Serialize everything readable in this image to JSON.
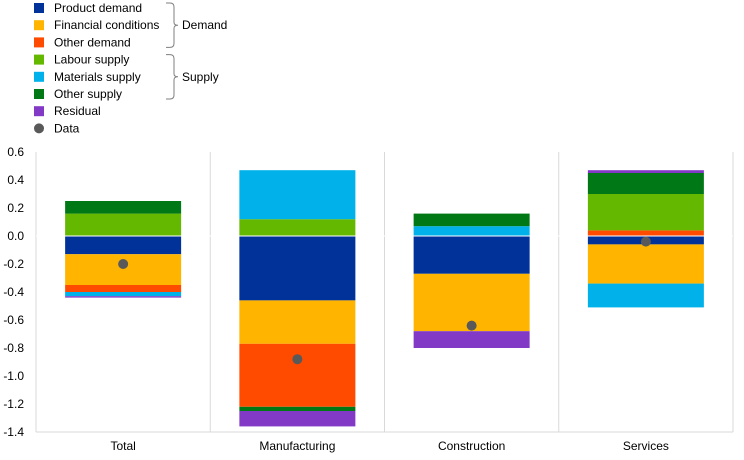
{
  "chart_data": {
    "type": "bar",
    "stacked": true,
    "categories": [
      "Total",
      "Manufacturing",
      "Construction",
      "Services"
    ],
    "ylim": [
      -1.4,
      0.6
    ],
    "yticks": [
      "0.6",
      "0.4",
      "0.2",
      "0.0",
      "-0.2",
      "-0.4",
      "-0.6",
      "-0.8",
      "-1.0",
      "-1.2",
      "-1.4"
    ],
    "ytick_values": [
      0.6,
      0.4,
      0.2,
      0.0,
      -0.2,
      -0.4,
      -0.6,
      -0.8,
      -1.0,
      -1.2,
      -1.4
    ],
    "grid": "vertical category separators",
    "legend_position": "top-left",
    "legend_groups": [
      {
        "label": "Demand",
        "series": [
          "Product demand",
          "Financial conditions",
          "Other demand"
        ]
      },
      {
        "label": "Supply",
        "series": [
          "Labour supply",
          "Materials supply",
          "Other supply"
        ]
      }
    ],
    "series": [
      {
        "name": "Product demand",
        "color": "#003299",
        "values": [
          -0.13,
          -0.46,
          -0.27,
          -0.06
        ]
      },
      {
        "name": "Financial conditions",
        "color": "#FFB400",
        "values": [
          -0.22,
          -0.31,
          -0.41,
          -0.28
        ]
      },
      {
        "name": "Other demand",
        "color": "#FF4B00",
        "values": [
          -0.05,
          -0.45,
          0.0,
          0.04
        ]
      },
      {
        "name": "Labour supply",
        "color": "#65B800",
        "values": [
          0.16,
          0.12,
          0.0,
          0.26
        ]
      },
      {
        "name": "Materials supply",
        "color": "#00B1EA",
        "values": [
          -0.03,
          0.35,
          0.07,
          -0.17
        ]
      },
      {
        "name": "Other supply",
        "color": "#007816",
        "values": [
          0.09,
          -0.03,
          0.09,
          0.15
        ]
      },
      {
        "name": "Residual",
        "color": "#8139C6",
        "values": [
          -0.01,
          -0.11,
          -0.12,
          0.02
        ]
      }
    ],
    "data_points": {
      "name": "Data",
      "color": "#595959",
      "values": [
        -0.2,
        -0.88,
        -0.64,
        -0.04
      ]
    }
  }
}
